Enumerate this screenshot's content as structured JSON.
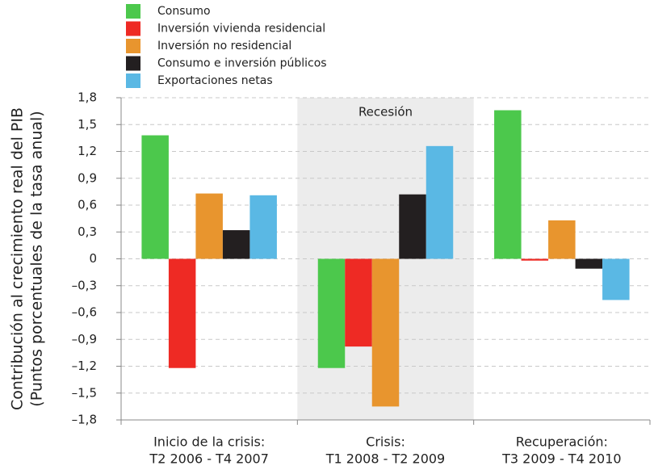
{
  "chart_data": {
    "type": "bar",
    "y_label": [
      "Contribución al crecimiento real del PIB",
      "(Puntos porcentuales de la tasa anual)"
    ],
    "categories": [
      [
        "Inicio de la crisis:",
        "T2 2006 - T4 2007"
      ],
      [
        "Crisis:",
        "T1 2008 - T2 2009"
      ],
      [
        "Recuperación:",
        "T3 2009 - T4 2010"
      ]
    ],
    "series": [
      {
        "name": "Consumo",
        "color": "#4cc84c",
        "values": [
          1.38,
          -1.22,
          1.66
        ]
      },
      {
        "name": "Inversión vivienda residencial",
        "color": "#ee2a24",
        "values": [
          -1.22,
          -0.98,
          -0.02
        ]
      },
      {
        "name": "Inversión no residencial",
        "color": "#e8952e",
        "values": [
          0.73,
          -1.65,
          0.43
        ]
      },
      {
        "name": "Consumo e inversión públicos",
        "color": "#231f20",
        "values": [
          0.32,
          0.72,
          -0.11
        ]
      },
      {
        "name": "Exportaciones netas",
        "color": "#5ab8e4",
        "values": [
          0.71,
          1.26,
          -0.46
        ]
      }
    ],
    "ylim": [
      -1.8,
      1.8
    ],
    "yticks": [
      {
        "value": 1.8,
        "label": "1,8"
      },
      {
        "value": 1.5,
        "label": "1,5"
      },
      {
        "value": 1.2,
        "label": "1,2"
      },
      {
        "value": 0.9,
        "label": "0,9"
      },
      {
        "value": 0.6,
        "label": "0,6"
      },
      {
        "value": 0.3,
        "label": "0,3"
      },
      0,
      {
        "value": -0.3,
        "label": "–0,3"
      },
      {
        "value": -0.6,
        "label": "–0,6"
      },
      {
        "value": -0.9,
        "label": "–0,9"
      },
      {
        "value": -1.2,
        "label": "–1,2"
      },
      {
        "value": -1.5,
        "label": "–1,5"
      },
      {
        "value": -1.8,
        "label": "–1,8"
      }
    ],
    "grid": true,
    "shaded_region": {
      "category": 1,
      "label": "Recesión",
      "color": "#ececec"
    },
    "legend": "top-left"
  }
}
